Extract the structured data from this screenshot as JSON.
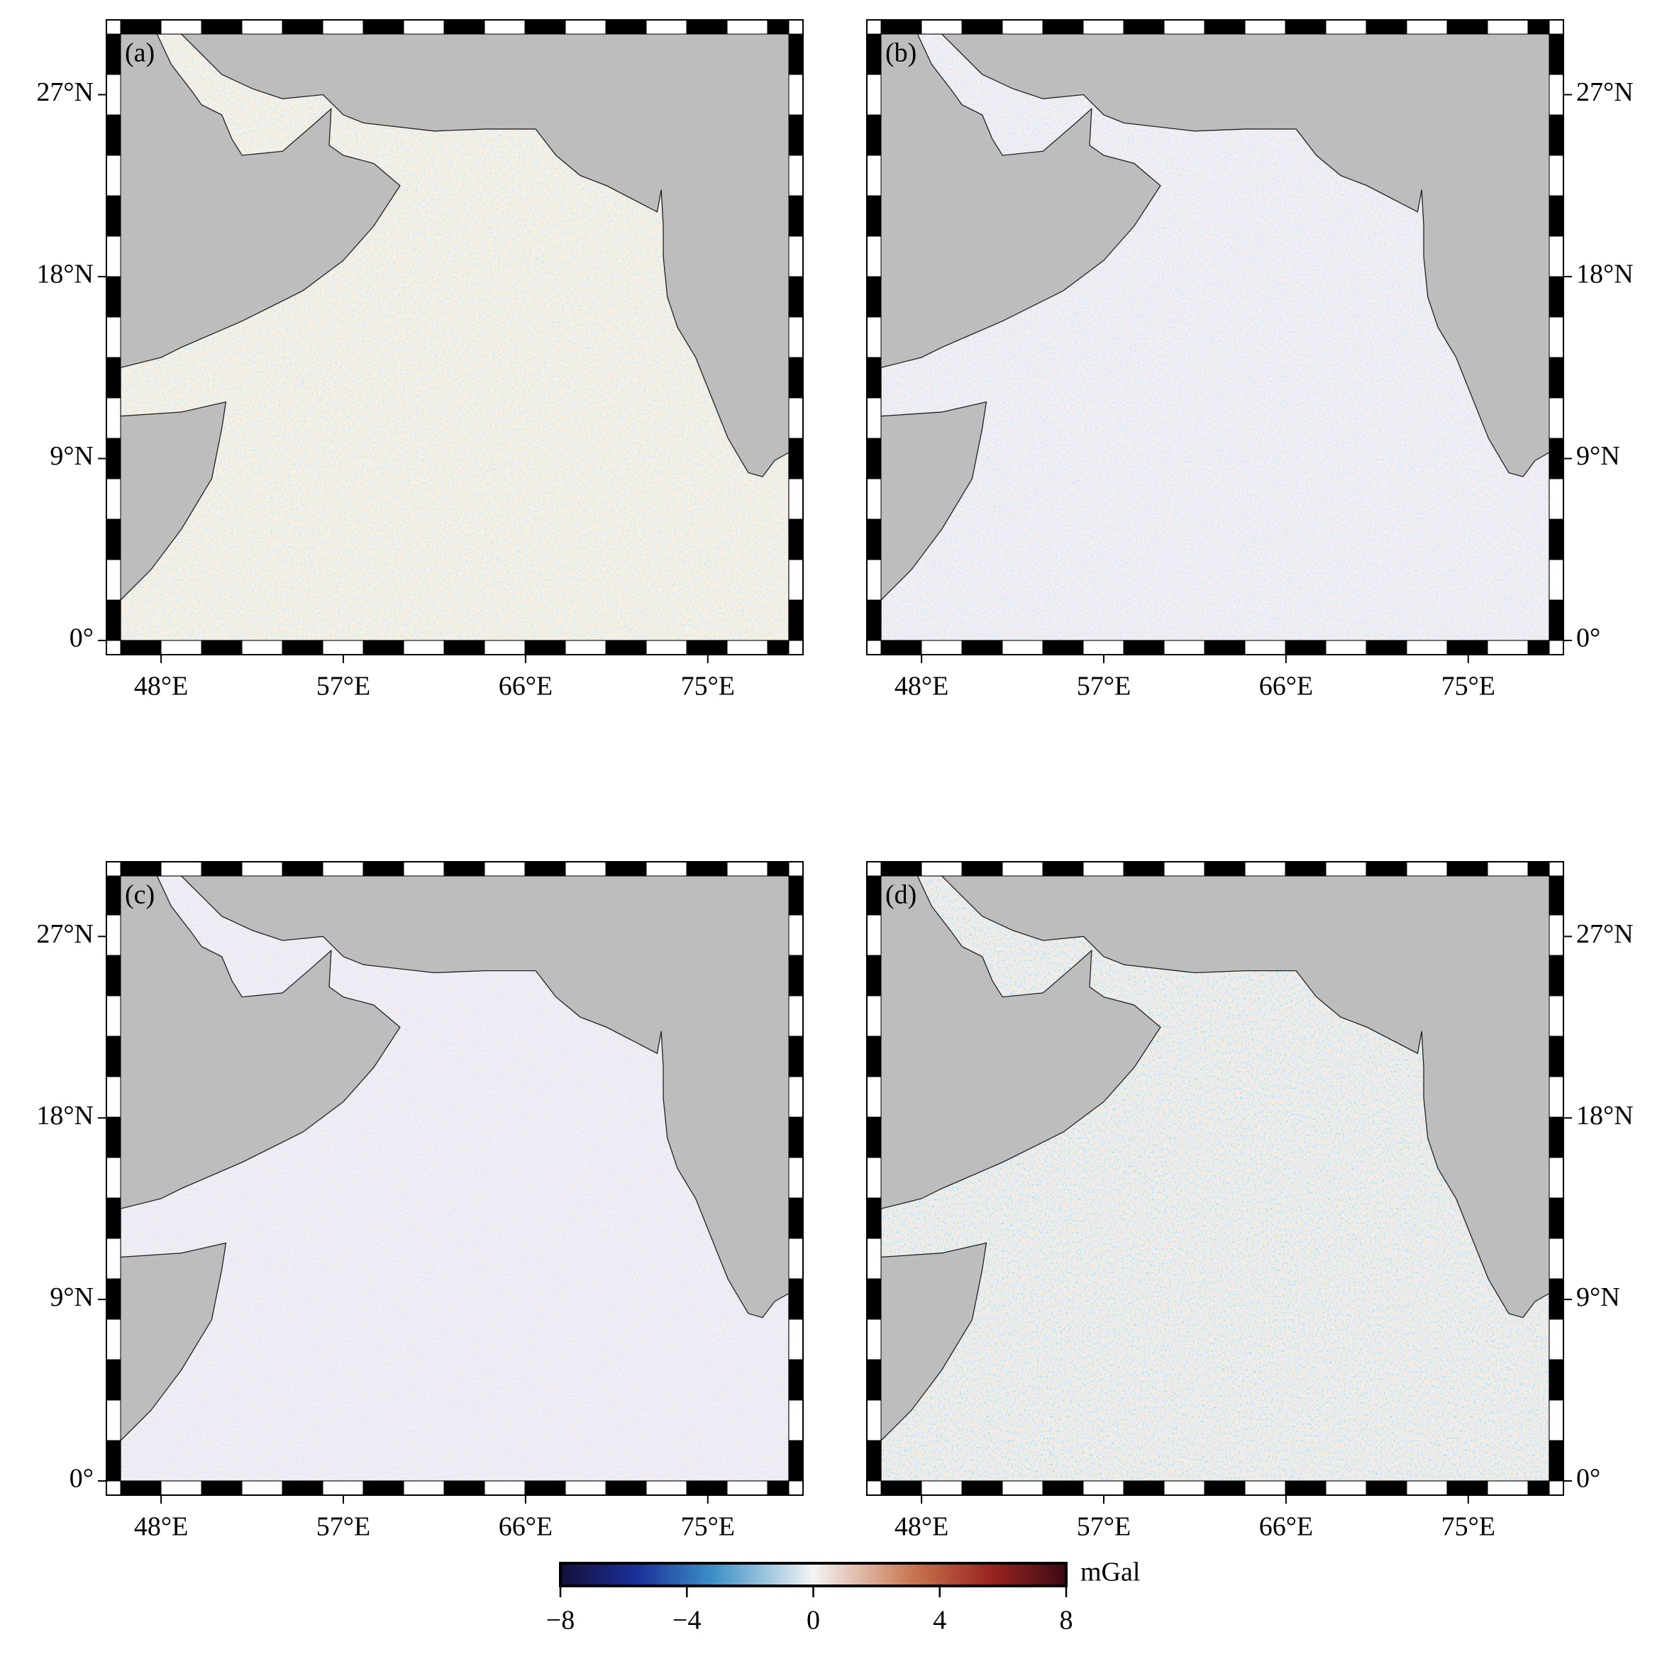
{
  "maps": {
    "xlim": [
      46,
      79
    ],
    "ylim": [
      0,
      30
    ],
    "xticks": [
      {
        "value": 48,
        "label": "48°E"
      },
      {
        "value": 57,
        "label": "57°E"
      },
      {
        "value": 66,
        "label": "66°E"
      },
      {
        "value": 75,
        "label": "75°E"
      }
    ],
    "yticks": [
      {
        "value": 0,
        "label": "0°"
      },
      {
        "value": 9,
        "label": "9°N"
      },
      {
        "value": 18,
        "label": "18°N"
      },
      {
        "value": 27,
        "label": "27°N"
      }
    ]
  },
  "panels": [
    {
      "label": "(a)"
    },
    {
      "label": "(b)"
    },
    {
      "label": "(c)"
    },
    {
      "label": "(d)"
    }
  ],
  "colorbar": {
    "lim": [
      -8,
      8
    ],
    "unit": "mGal",
    "ticks": [
      {
        "value": -8,
        "label": "−8"
      },
      {
        "value": -4,
        "label": "−4"
      },
      0,
      4,
      8
    ]
  }
}
